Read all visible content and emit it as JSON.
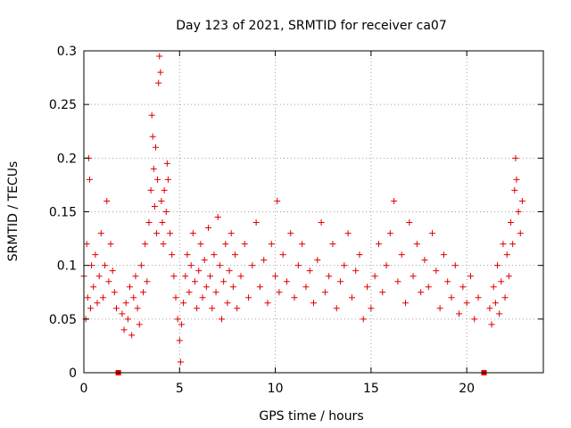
{
  "chart_data": {
    "type": "scatter",
    "title": "Day 123 of 2021, SRMTID for receiver ca07",
    "xlabel": "GPS time / hours",
    "ylabel": "SRMTID / TECUs",
    "xlim": [
      0,
      24
    ],
    "ylim": [
      0,
      0.3
    ],
    "x_ticks": [
      0,
      5,
      10,
      15,
      20
    ],
    "x_tick_labels": [
      "0",
      "5",
      "10",
      "15",
      "20"
    ],
    "y_ticks": [
      0,
      0.05,
      0.1,
      0.15,
      0.2,
      0.25,
      0.3
    ],
    "y_tick_labels": [
      "0",
      "0.05",
      "0.1",
      "0.15",
      "0.2",
      "0.25",
      "0.3"
    ],
    "grid": true,
    "marker": "+",
    "color": "#e00000",
    "data_gaps_hours": [
      1.8,
      20.9
    ],
    "series": [
      {
        "name": "SRMTID",
        "points": [
          [
            0.0,
            0.09
          ],
          [
            0.1,
            0.05
          ],
          [
            0.15,
            0.12
          ],
          [
            0.2,
            0.07
          ],
          [
            0.25,
            0.2
          ],
          [
            0.3,
            0.18
          ],
          [
            0.35,
            0.06
          ],
          [
            0.4,
            0.1
          ],
          [
            0.5,
            0.08
          ],
          [
            0.6,
            0.11
          ],
          [
            0.7,
            0.065
          ],
          [
            0.8,
            0.09
          ],
          [
            0.9,
            0.13
          ],
          [
            1.0,
            0.07
          ],
          [
            1.1,
            0.1
          ],
          [
            1.2,
            0.16
          ],
          [
            1.3,
            0.085
          ],
          [
            1.4,
            0.12
          ],
          [
            1.5,
            0.095
          ],
          [
            1.6,
            0.075
          ],
          [
            1.7,
            0.06
          ],
          [
            2.0,
            0.055
          ],
          [
            2.1,
            0.04
          ],
          [
            2.2,
            0.065
          ],
          [
            2.3,
            0.05
          ],
          [
            2.4,
            0.08
          ],
          [
            2.5,
            0.035
          ],
          [
            2.6,
            0.07
          ],
          [
            2.7,
            0.09
          ],
          [
            2.8,
            0.06
          ],
          [
            2.9,
            0.045
          ],
          [
            3.0,
            0.1
          ],
          [
            3.1,
            0.075
          ],
          [
            3.2,
            0.12
          ],
          [
            3.3,
            0.085
          ],
          [
            3.4,
            0.14
          ],
          [
            3.5,
            0.17
          ],
          [
            3.55,
            0.24
          ],
          [
            3.6,
            0.22
          ],
          [
            3.65,
            0.19
          ],
          [
            3.7,
            0.155
          ],
          [
            3.75,
            0.21
          ],
          [
            3.8,
            0.13
          ],
          [
            3.85,
            0.18
          ],
          [
            3.9,
            0.27
          ],
          [
            3.95,
            0.295
          ],
          [
            4.0,
            0.28
          ],
          [
            4.05,
            0.16
          ],
          [
            4.1,
            0.14
          ],
          [
            4.15,
            0.12
          ],
          [
            4.2,
            0.17
          ],
          [
            4.3,
            0.15
          ],
          [
            4.35,
            0.195
          ],
          [
            4.4,
            0.18
          ],
          [
            4.5,
            0.13
          ],
          [
            4.6,
            0.11
          ],
          [
            4.7,
            0.09
          ],
          [
            4.8,
            0.07
          ],
          [
            4.9,
            0.05
          ],
          [
            5.0,
            0.03
          ],
          [
            5.05,
            0.01
          ],
          [
            5.1,
            0.045
          ],
          [
            5.2,
            0.065
          ],
          [
            5.3,
            0.09
          ],
          [
            5.4,
            0.11
          ],
          [
            5.5,
            0.075
          ],
          [
            5.6,
            0.1
          ],
          [
            5.7,
            0.13
          ],
          [
            5.8,
            0.085
          ],
          [
            5.9,
            0.06
          ],
          [
            6.0,
            0.095
          ],
          [
            6.1,
            0.12
          ],
          [
            6.2,
            0.07
          ],
          [
            6.3,
            0.105
          ],
          [
            6.4,
            0.08
          ],
          [
            6.5,
            0.135
          ],
          [
            6.6,
            0.09
          ],
          [
            6.7,
            0.06
          ],
          [
            6.8,
            0.11
          ],
          [
            6.9,
            0.075
          ],
          [
            7.0,
            0.145
          ],
          [
            7.1,
            0.1
          ],
          [
            7.2,
            0.05
          ],
          [
            7.3,
            0.085
          ],
          [
            7.4,
            0.12
          ],
          [
            7.5,
            0.065
          ],
          [
            7.6,
            0.095
          ],
          [
            7.7,
            0.13
          ],
          [
            7.8,
            0.08
          ],
          [
            7.9,
            0.11
          ],
          [
            8.0,
            0.06
          ],
          [
            8.2,
            0.09
          ],
          [
            8.4,
            0.12
          ],
          [
            8.6,
            0.07
          ],
          [
            8.8,
            0.1
          ],
          [
            9.0,
            0.14
          ],
          [
            9.2,
            0.08
          ],
          [
            9.4,
            0.105
          ],
          [
            9.6,
            0.065
          ],
          [
            9.8,
            0.12
          ],
          [
            10.0,
            0.09
          ],
          [
            10.1,
            0.16
          ],
          [
            10.2,
            0.075
          ],
          [
            10.4,
            0.11
          ],
          [
            10.6,
            0.085
          ],
          [
            10.8,
            0.13
          ],
          [
            11.0,
            0.07
          ],
          [
            11.2,
            0.1
          ],
          [
            11.4,
            0.12
          ],
          [
            11.6,
            0.08
          ],
          [
            11.8,
            0.095
          ],
          [
            12.0,
            0.065
          ],
          [
            12.2,
            0.105
          ],
          [
            12.4,
            0.14
          ],
          [
            12.6,
            0.075
          ],
          [
            12.8,
            0.09
          ],
          [
            13.0,
            0.12
          ],
          [
            13.2,
            0.06
          ],
          [
            13.4,
            0.085
          ],
          [
            13.6,
            0.1
          ],
          [
            13.8,
            0.13
          ],
          [
            14.0,
            0.07
          ],
          [
            14.2,
            0.095
          ],
          [
            14.4,
            0.11
          ],
          [
            14.6,
            0.05
          ],
          [
            14.8,
            0.08
          ],
          [
            15.0,
            0.06
          ],
          [
            15.2,
            0.09
          ],
          [
            15.4,
            0.12
          ],
          [
            15.6,
            0.075
          ],
          [
            15.8,
            0.1
          ],
          [
            16.0,
            0.13
          ],
          [
            16.2,
            0.16
          ],
          [
            16.4,
            0.085
          ],
          [
            16.6,
            0.11
          ],
          [
            16.8,
            0.065
          ],
          [
            17.0,
            0.14
          ],
          [
            17.2,
            0.09
          ],
          [
            17.4,
            0.12
          ],
          [
            17.6,
            0.075
          ],
          [
            17.8,
            0.105
          ],
          [
            18.0,
            0.08
          ],
          [
            18.2,
            0.13
          ],
          [
            18.4,
            0.095
          ],
          [
            18.6,
            0.06
          ],
          [
            18.8,
            0.11
          ],
          [
            19.0,
            0.085
          ],
          [
            19.2,
            0.07
          ],
          [
            19.4,
            0.1
          ],
          [
            19.6,
            0.055
          ],
          [
            19.8,
            0.08
          ],
          [
            20.0,
            0.065
          ],
          [
            20.2,
            0.09
          ],
          [
            20.4,
            0.05
          ],
          [
            20.6,
            0.07
          ],
          [
            21.2,
            0.06
          ],
          [
            21.3,
            0.045
          ],
          [
            21.4,
            0.08
          ],
          [
            21.5,
            0.065
          ],
          [
            21.6,
            0.1
          ],
          [
            21.7,
            0.055
          ],
          [
            21.8,
            0.085
          ],
          [
            21.9,
            0.12
          ],
          [
            22.0,
            0.07
          ],
          [
            22.1,
            0.11
          ],
          [
            22.2,
            0.09
          ],
          [
            22.3,
            0.14
          ],
          [
            22.4,
            0.12
          ],
          [
            22.5,
            0.17
          ],
          [
            22.55,
            0.2
          ],
          [
            22.6,
            0.18
          ],
          [
            22.7,
            0.15
          ],
          [
            22.8,
            0.13
          ],
          [
            22.9,
            0.16
          ]
        ]
      }
    ]
  }
}
